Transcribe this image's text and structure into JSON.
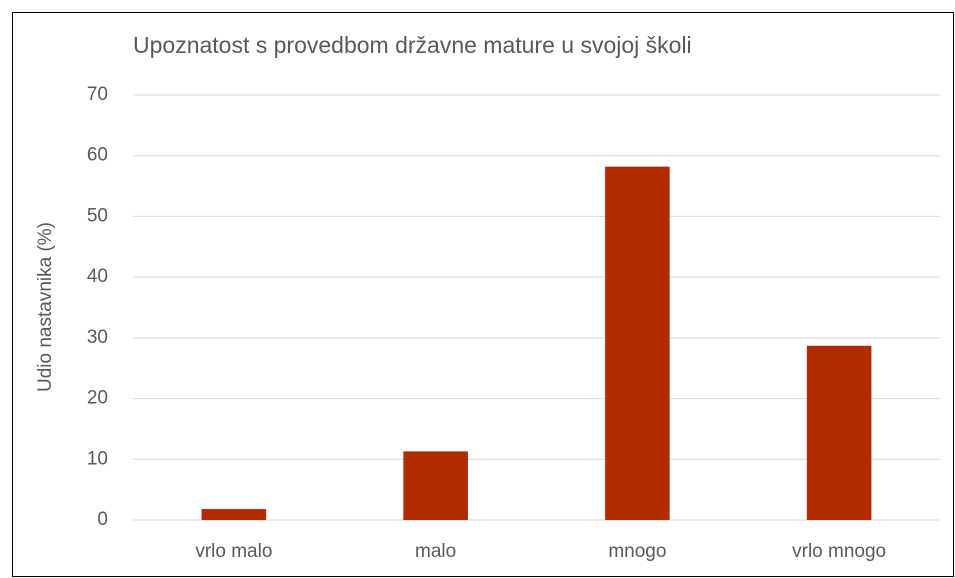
{
  "chart_data": {
    "type": "bar",
    "title": "Upoznatost s provedbom državne mature u svojoj školi",
    "y_label": "Udio nastavnika (%)",
    "categories": [
      "vrlo malo",
      "malo",
      "mnogo",
      "vrlo mnogo"
    ],
    "values": [
      1.8,
      11.3,
      58.2,
      28.7
    ],
    "color": "#b22a00",
    "ylim": [
      0,
      70
    ],
    "yticks": [
      0,
      10,
      20,
      30,
      40,
      50,
      60,
      70
    ],
    "grid": true
  }
}
